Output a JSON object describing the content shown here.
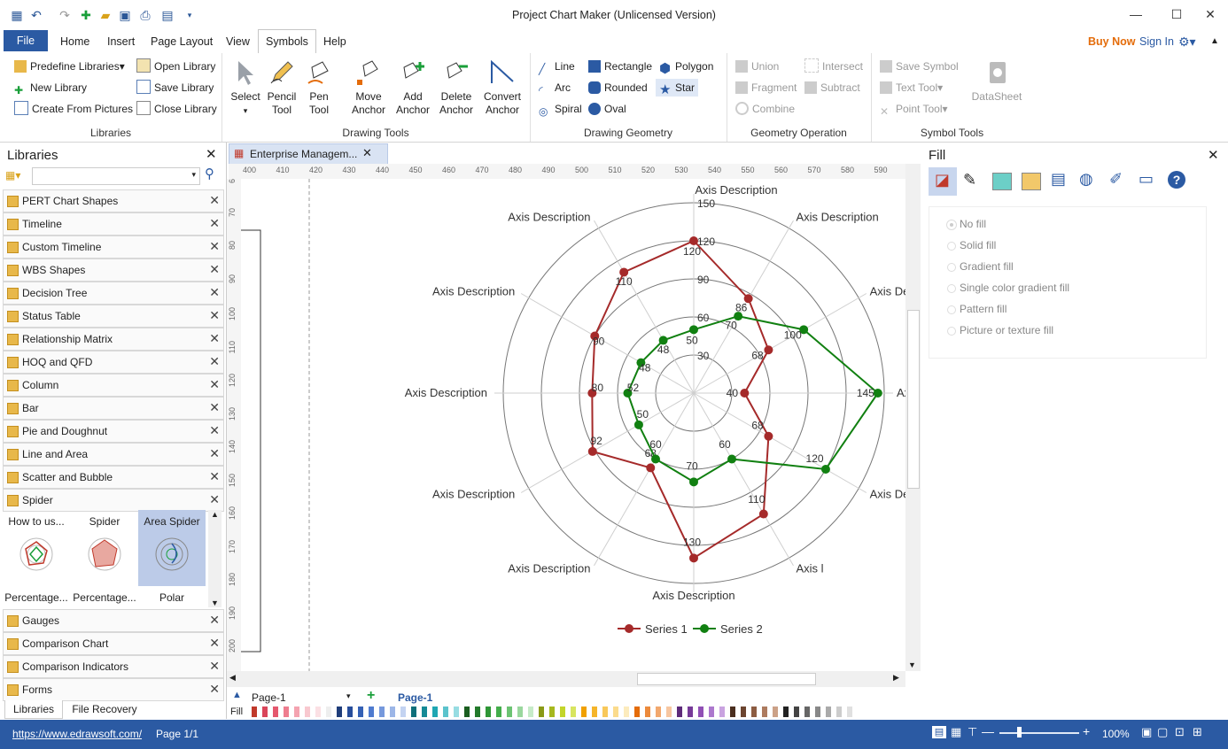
{
  "app": {
    "title": "Project Chart Maker (Unlicensed Version)"
  },
  "menu": {
    "file": "File",
    "tabs": [
      "Home",
      "Insert",
      "Page Layout",
      "View",
      "Symbols",
      "Help"
    ],
    "buy_now": "Buy Now",
    "sign_in": "Sign In"
  },
  "ribbon": {
    "libraries": {
      "label": "Libraries",
      "predefine": "Predefine Libraries",
      "open": "Open Library",
      "new": "New Library",
      "save": "Save Library",
      "create": "Create From Pictures",
      "close": "Close Library"
    },
    "drawing_tools": {
      "label": "Drawing Tools",
      "select": "Select",
      "pencil": [
        "Pencil",
        "Tool"
      ],
      "pen": [
        "Pen",
        "Tool"
      ],
      "move": [
        "Move",
        "Anchor"
      ],
      "add": [
        "Add",
        "Anchor"
      ],
      "delete": [
        "Delete",
        "Anchor"
      ],
      "convert": [
        "Convert",
        "Anchor"
      ]
    },
    "drawing_geometry": {
      "label": "Drawing Geometry",
      "line": "Line",
      "arc": "Arc",
      "spiral": "Spiral",
      "rectangle": "Rectangle",
      "rounded": "Rounded",
      "oval": "Oval",
      "polygon": "Polygon",
      "star": "Star"
    },
    "geometry_operation": {
      "label": "Geometry Operation",
      "union": "Union",
      "fragment": "Fragment",
      "combine": "Combine",
      "intersect": "Intersect",
      "subtract": "Subtract"
    },
    "symbol_tools": {
      "label": "Symbol Tools",
      "save_symbol": "Save Symbol",
      "text_tool": "Text Tool",
      "point_tool": "Point Tool",
      "datasheet": "DataSheet"
    }
  },
  "libraries_panel": {
    "title": "Libraries",
    "items": [
      "PERT Chart Shapes",
      "Timeline",
      "Custom Timeline",
      "WBS Shapes",
      "Decision Tree",
      "Status Table",
      "Relationship Matrix",
      "HOQ and QFD",
      "Column",
      "Bar",
      "Pie and Doughnut",
      "Line and Area",
      "Scatter and Bubble",
      "Spider"
    ],
    "thumbs": [
      {
        "top": "How to us...",
        "bottom": "Percentage..."
      },
      {
        "top": "Spider",
        "bottom": "Percentage..."
      },
      {
        "top": "Area Spider",
        "bottom": "Polar"
      }
    ],
    "items_after": [
      "Gauges",
      "Comparison Chart",
      "Comparison Indicators",
      "Forms"
    ],
    "tabs": [
      "Libraries",
      "File Recovery"
    ]
  },
  "document": {
    "tab": "Enterprise Managem...",
    "ruler_top": [
      "400",
      "410",
      "420",
      "430",
      "440",
      "450",
      "460",
      "470",
      "480",
      "490",
      "500",
      "510",
      "520",
      "530",
      "540",
      "550",
      "560",
      "570",
      "580",
      "590"
    ],
    "ruler_left": [
      "6",
      "70",
      "80",
      "90",
      "100",
      "110",
      "120",
      "130",
      "140",
      "150",
      "160",
      "170",
      "180",
      "190",
      "200"
    ],
    "page_name": "Page-1",
    "page_tab": "Page-1",
    "fill_label": "Fill"
  },
  "chart_data": {
    "type": "radar",
    "axis_label": "Axis Description",
    "visible_axis_labels": [
      "Axis Description",
      "Axis Description",
      "Axis Description",
      "Axis l",
      "Axis Description",
      "Axis l",
      "Axis Description",
      "Axis Description",
      "Axis Description",
      "Axis Description",
      "Axis Description",
      "Axis Description"
    ],
    "rlim": [
      0,
      150
    ],
    "rticks": [
      "30",
      "60",
      "90",
      "120",
      "150"
    ],
    "series": [
      {
        "name": "Series 1",
        "color": "#a52a2a",
        "values": [
          120,
          86,
          68,
          40,
          68,
          110,
          130,
          68,
          92,
          80,
          90,
          110
        ],
        "labels": [
          "120",
          "86",
          "68",
          "40",
          "68",
          "110",
          "130",
          "68",
          "92",
          "80",
          "90",
          "110"
        ]
      },
      {
        "name": "Series 2",
        "color": "#118011",
        "values": [
          50,
          70,
          100,
          145,
          120,
          60,
          70,
          60,
          50,
          52,
          48,
          48
        ],
        "labels": [
          "50",
          "70",
          "100",
          "145",
          "120",
          "60",
          "70",
          "60",
          "50",
          "52",
          "48",
          "48"
        ]
      }
    ],
    "legend_position": "bottom"
  },
  "fill_panel": {
    "title": "Fill",
    "options": [
      "No fill",
      "Solid fill",
      "Gradient fill",
      "Single color gradient fill",
      "Pattern fill",
      "Picture or texture fill"
    ]
  },
  "status": {
    "url": "https://www.edrawsoft.com/",
    "page": "Page 1/1",
    "zoom": "100%"
  }
}
